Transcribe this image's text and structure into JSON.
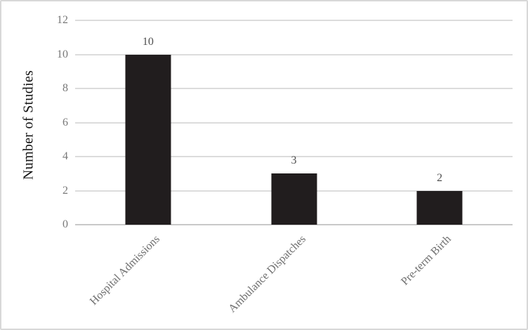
{
  "chart_data": {
    "type": "bar",
    "categories": [
      "Hospital Admissions",
      "Ambulance Dispatches",
      "Pre-term Birth"
    ],
    "values": [
      10,
      3,
      2
    ],
    "data_labels": [
      "10",
      "3",
      "2"
    ],
    "title": "",
    "xlabel": "",
    "ylabel": "Number of Studies",
    "ylim": [
      0,
      12
    ],
    "yticks": [
      0,
      2,
      4,
      6,
      8,
      10,
      12
    ],
    "grid": true,
    "legend": false,
    "colors": {
      "bar": "#211d1e",
      "gridline": "#dcdcdc",
      "axis_line": "#c9c9c9",
      "tick_label": "#787878",
      "category_label": "#6f6f6f",
      "data_label": "#4f4f4f",
      "axis_title": "#141414",
      "chart_border": "#d8d8d8",
      "background": "#ffffff"
    }
  }
}
